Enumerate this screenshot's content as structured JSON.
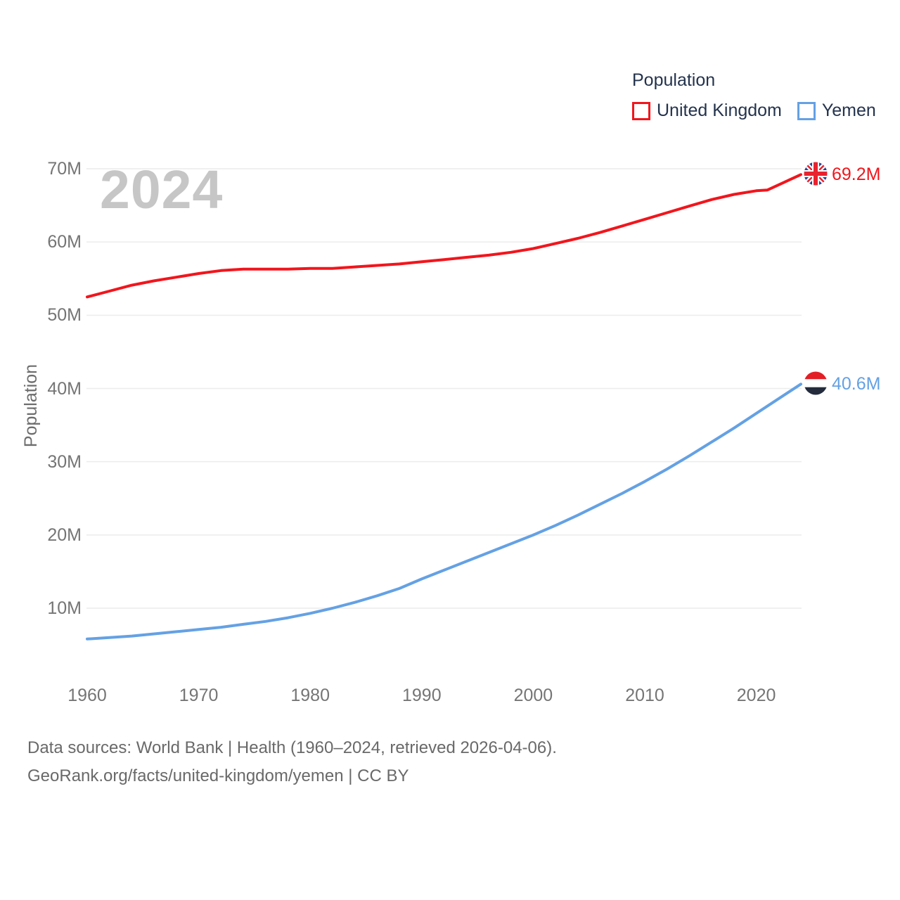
{
  "watermark": "2024",
  "legend": {
    "title": "Population",
    "items": [
      {
        "label": "United Kingdom",
        "color": "#f2151c"
      },
      {
        "label": "Yemen",
        "color": "#64a1e4"
      }
    ]
  },
  "chart_data": {
    "type": "line",
    "title": "Population",
    "xlabel": "",
    "ylabel": "Population",
    "x_ticks": [
      1960,
      1970,
      1980,
      1990,
      2000,
      2010,
      2020
    ],
    "y_ticks": [
      {
        "value": 10,
        "label": "10M"
      },
      {
        "value": 20,
        "label": "20M"
      },
      {
        "value": 30,
        "label": "30M"
      },
      {
        "value": 40,
        "label": "40M"
      },
      {
        "value": 50,
        "label": "50M"
      },
      {
        "value": 60,
        "label": "60M"
      },
      {
        "value": 70,
        "label": "70M"
      }
    ],
    "xlim": [
      1960,
      2024
    ],
    "ylim": [
      3,
      71
    ],
    "grid": "horizontal-only",
    "legend_position": "top-right",
    "series": [
      {
        "name": "United Kingdom",
        "color": "#f2151c",
        "end_label": "69.2M",
        "end_flag": "united-kingdom",
        "points": [
          [
            1960,
            52.5
          ],
          [
            1962,
            53.3
          ],
          [
            1964,
            54.1
          ],
          [
            1966,
            54.7
          ],
          [
            1968,
            55.2
          ],
          [
            1970,
            55.7
          ],
          [
            1972,
            56.1
          ],
          [
            1974,
            56.3
          ],
          [
            1976,
            56.3
          ],
          [
            1978,
            56.3
          ],
          [
            1980,
            56.4
          ],
          [
            1982,
            56.4
          ],
          [
            1984,
            56.6
          ],
          [
            1986,
            56.8
          ],
          [
            1988,
            57.0
          ],
          [
            1990,
            57.3
          ],
          [
            1992,
            57.6
          ],
          [
            1994,
            57.9
          ],
          [
            1996,
            58.2
          ],
          [
            1998,
            58.6
          ],
          [
            2000,
            59.1
          ],
          [
            2002,
            59.8
          ],
          [
            2004,
            60.5
          ],
          [
            2006,
            61.3
          ],
          [
            2008,
            62.2
          ],
          [
            2010,
            63.1
          ],
          [
            2012,
            64.0
          ],
          [
            2014,
            64.9
          ],
          [
            2016,
            65.8
          ],
          [
            2018,
            66.5
          ],
          [
            2020,
            67.0
          ],
          [
            2021,
            67.1
          ],
          [
            2022,
            67.8
          ],
          [
            2023,
            68.5
          ],
          [
            2024,
            69.2
          ]
        ]
      },
      {
        "name": "Yemen",
        "color": "#64a1e4",
        "end_label": "40.6M",
        "end_flag": "yemen",
        "points": [
          [
            1960,
            5.8
          ],
          [
            1962,
            6.0
          ],
          [
            1964,
            6.2
          ],
          [
            1966,
            6.5
          ],
          [
            1968,
            6.8
          ],
          [
            1970,
            7.1
          ],
          [
            1972,
            7.4
          ],
          [
            1974,
            7.8
          ],
          [
            1976,
            8.2
          ],
          [
            1978,
            8.7
          ],
          [
            1980,
            9.3
          ],
          [
            1982,
            10.0
          ],
          [
            1984,
            10.8
          ],
          [
            1986,
            11.7
          ],
          [
            1988,
            12.7
          ],
          [
            1990,
            14.0
          ],
          [
            1992,
            15.2
          ],
          [
            1994,
            16.4
          ],
          [
            1996,
            17.6
          ],
          [
            1998,
            18.8
          ],
          [
            2000,
            20.0
          ],
          [
            2002,
            21.3
          ],
          [
            2004,
            22.7
          ],
          [
            2006,
            24.2
          ],
          [
            2008,
            25.7
          ],
          [
            2010,
            27.3
          ],
          [
            2012,
            29.0
          ],
          [
            2014,
            30.8
          ],
          [
            2016,
            32.7
          ],
          [
            2018,
            34.6
          ],
          [
            2020,
            36.6
          ],
          [
            2022,
            38.6
          ],
          [
            2024,
            40.6
          ]
        ]
      }
    ]
  },
  "footer": {
    "line1": "Data sources: World Bank | Health (1960–2024, retrieved 2026-04-06).",
    "line2": "GeoRank.org/facts/united-kingdom/yemen | CC BY"
  },
  "colors": {
    "grid": "#ececec",
    "tick_text": "#757575",
    "legend_text": "#24334d",
    "watermark": "#c6c6c6",
    "footer_text": "#696969"
  }
}
